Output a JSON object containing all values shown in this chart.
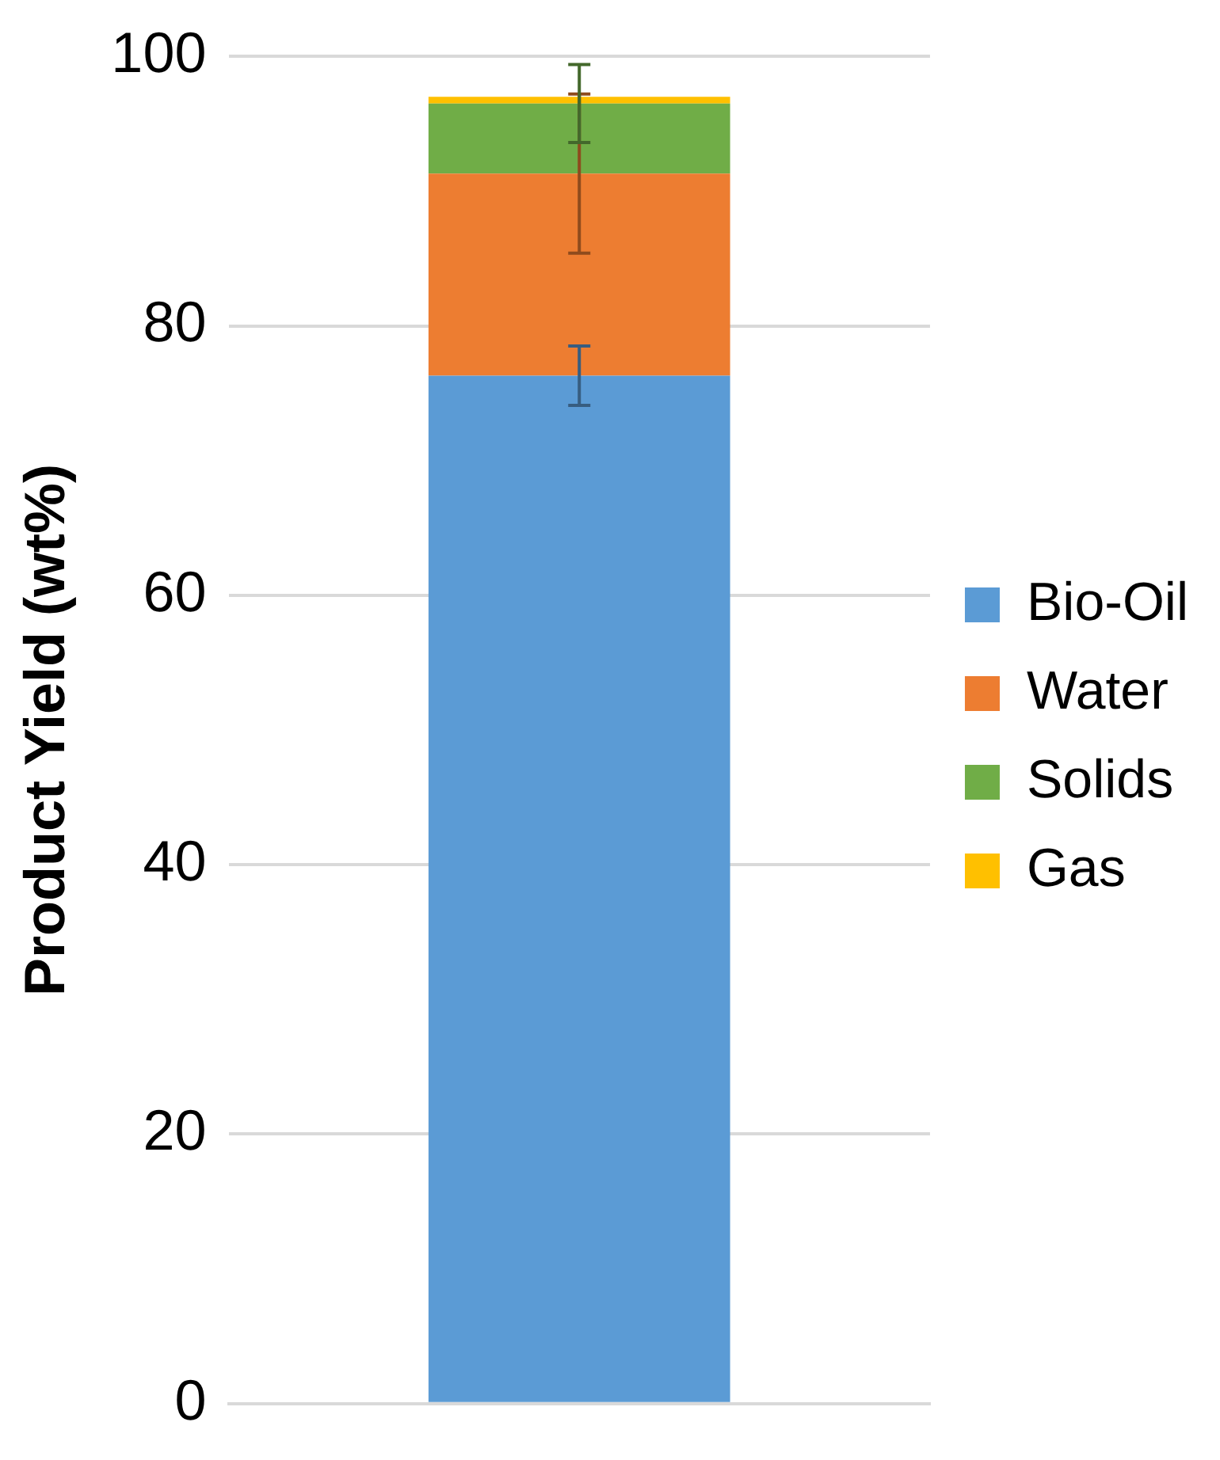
{
  "chart_data": {
    "type": "bar",
    "stacked": true,
    "ylabel": "Product Yield (wt%)",
    "categories": [
      null
    ],
    "series": [
      {
        "name": "Bio-Oil",
        "color": "#5b9bd5",
        "values": [
          76.3
        ],
        "errors": [
          2.2
        ]
      },
      {
        "name": "Water",
        "color": "#ed7d31",
        "values": [
          15.0
        ],
        "errors": [
          5.9
        ]
      },
      {
        "name": "Solids",
        "color": "#70ad47",
        "values": [
          5.2
        ],
        "errors": [
          2.9
        ]
      },
      {
        "name": "Gas",
        "color": "#ffc000",
        "values": [
          0.5
        ]
      }
    ],
    "ylim": [
      0,
      100
    ],
    "yticks": [
      0,
      20,
      40,
      60,
      80,
      100
    ],
    "grid": "y",
    "legend": "right"
  }
}
